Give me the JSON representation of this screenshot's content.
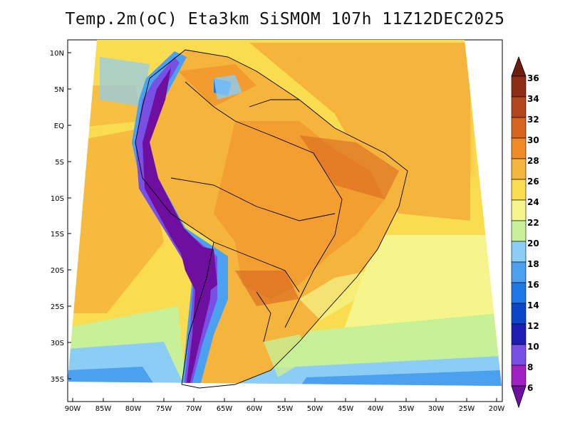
{
  "title": "Temp.2m(oC) Eta3km SiSMOM 107h 11Z12DEC2025",
  "map": {
    "lat_labels": [
      "10N",
      "5N",
      "EQ",
      "5S",
      "10S",
      "15S",
      "20S",
      "25S",
      "30S",
      "35S"
    ],
    "lat_values": [
      10,
      5,
      0,
      -5,
      -10,
      -15,
      -20,
      -25,
      -30,
      -35
    ],
    "lon_labels": [
      "90W",
      "85W",
      "80W",
      "75W",
      "70W",
      "65W",
      "60W",
      "55W",
      "50W",
      "45W",
      "40W",
      "35W",
      "30W",
      "25W",
      "20W"
    ],
    "lon_values": [
      -90,
      -85,
      -80,
      -75,
      -70,
      -65,
      -60,
      -55,
      -50,
      -45,
      -40,
      -35,
      -30,
      -25,
      -20
    ],
    "lat_range": [
      -38,
      11
    ],
    "lon_range": [
      -91,
      -20
    ]
  },
  "colorbar": {
    "labels": [
      "6",
      "8",
      "10",
      "12",
      "14",
      "16",
      "18",
      "20",
      "22",
      "24",
      "26",
      "28",
      "30",
      "32",
      "34",
      "36"
    ],
    "colors": [
      "#6e0fa0",
      "#a020c0",
      "#7850e6",
      "#1e1eb4",
      "#0a46c8",
      "#1e78e6",
      "#4ba0f0",
      "#8ccdf5",
      "#c8f096",
      "#f5f58c",
      "#fadc50",
      "#f5b43c",
      "#f08c28",
      "#d7641e",
      "#b4461e",
      "#8c2d14",
      "#6e1e0a"
    ],
    "units": "oC"
  }
}
